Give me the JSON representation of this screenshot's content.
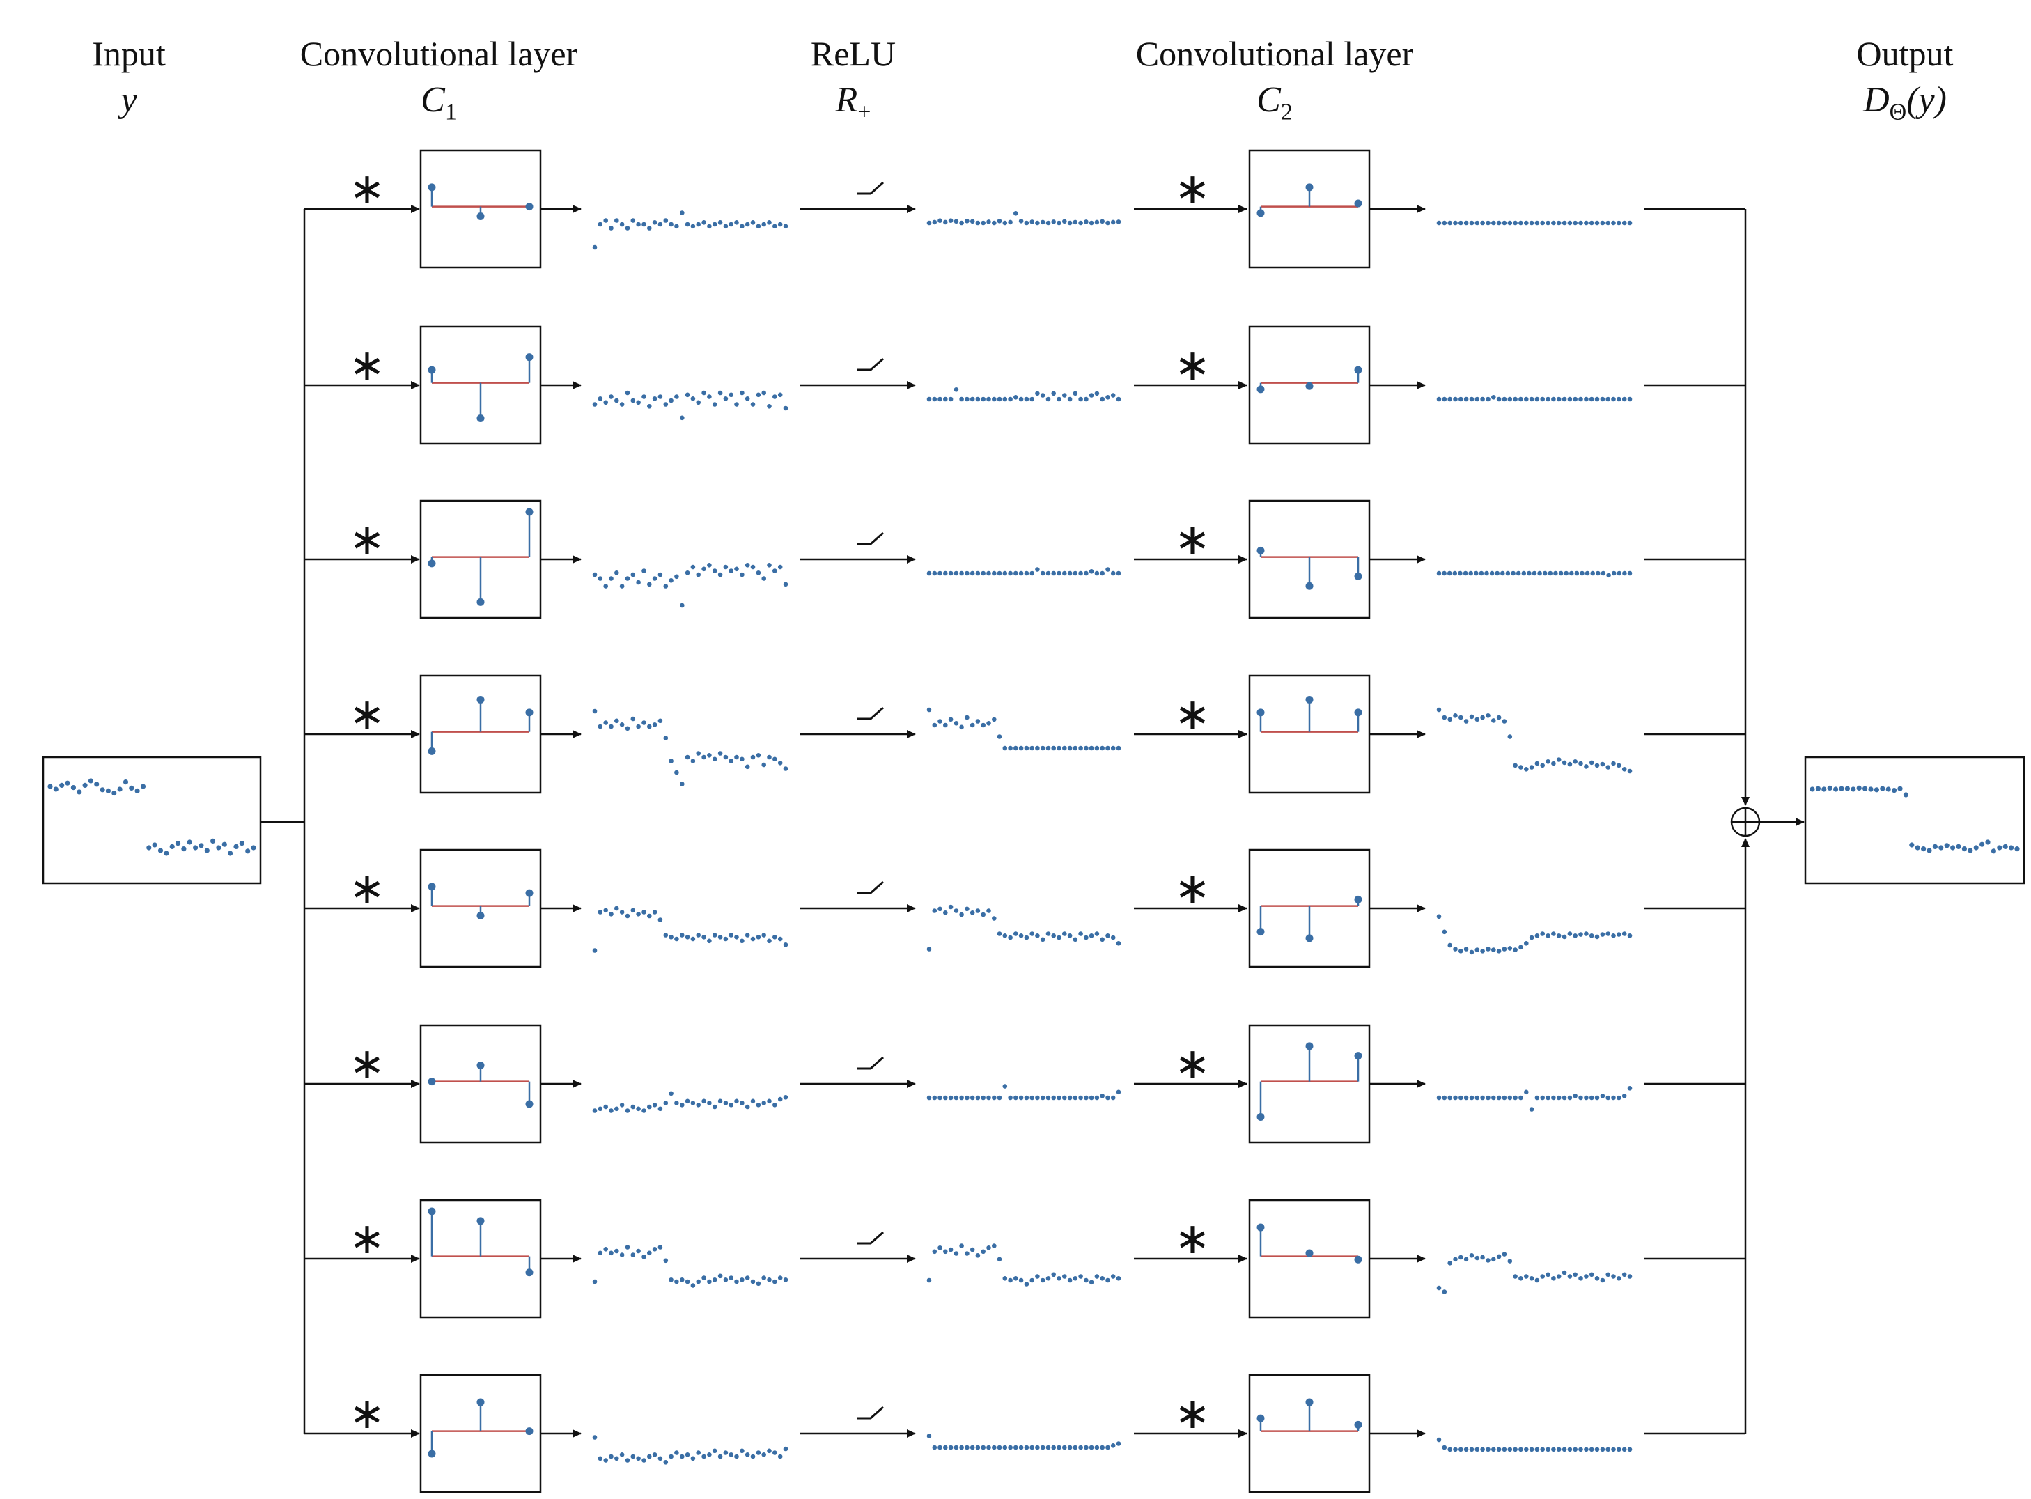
{
  "headers": {
    "input": {
      "title": "Input",
      "symbol": "y"
    },
    "conv1": {
      "title": "Convolutional layer",
      "symbol": "C",
      "subscript": "1"
    },
    "relu": {
      "title": "ReLU",
      "symbol": "R",
      "subscript": "+"
    },
    "conv2": {
      "title": "Convolutional layer",
      "symbol": "C",
      "subscript": "2"
    },
    "output": {
      "title": "Output",
      "symbol": "D",
      "subscript": "Θ",
      "arg": "(y)"
    }
  },
  "operators": {
    "convolution": "∗",
    "sum": "⊕"
  },
  "colors": {
    "points": "#3a6ea5",
    "baseline": "#c0504d",
    "line": "#111111"
  },
  "input_signal": [
    0.6,
    0.55,
    0.62,
    0.66,
    0.58,
    0.5,
    0.62,
    0.7,
    0.64,
    0.54,
    0.52,
    0.48,
    0.55,
    0.68,
    0.57,
    0.52,
    0.6,
    -0.5,
    -0.45,
    -0.55,
    -0.6,
    -0.48,
    -0.42,
    -0.52,
    -0.4,
    -0.5,
    -0.46,
    -0.55,
    -0.38,
    -0.5,
    -0.44,
    -0.6,
    -0.48,
    -0.42,
    -0.56,
    -0.5
  ],
  "output_signal": [
    0.55,
    0.56,
    0.55,
    0.57,
    0.55,
    0.56,
    0.56,
    0.55,
    0.57,
    0.56,
    0.55,
    0.54,
    0.56,
    0.55,
    0.53,
    0.56,
    0.45,
    -0.45,
    -0.5,
    -0.52,
    -0.55,
    -0.48,
    -0.5,
    -0.46,
    -0.5,
    -0.48,
    -0.52,
    -0.55,
    -0.5,
    -0.44,
    -0.4,
    -0.56,
    -0.5,
    -0.48,
    -0.5,
    -0.52
  ],
  "channels": [
    {
      "k1": [
        0.3,
        -0.15,
        0.0
      ],
      "k2": [
        -0.1,
        0.3,
        0.05
      ],
      "conv": [
        -0.6,
        0.0,
        0.1,
        -0.1,
        0.1,
        0.0,
        -0.1,
        0.1,
        0.0,
        0.0,
        -0.1,
        0.05,
        0.0,
        0.1,
        0.0,
        -0.05,
        0.3,
        0.0,
        -0.05,
        0.0,
        0.05,
        -0.05,
        0.0,
        0.05,
        -0.05,
        0.0,
        0.05,
        -0.05,
        0.0,
        0.05,
        -0.05,
        0.0,
        0.05,
        -0.05,
        0.0,
        -0.05
      ],
      "relu": [
        0.0,
        0.02,
        0.06,
        0.02,
        0.06,
        0.04,
        0.0,
        0.05,
        0.04,
        0.0,
        0.0,
        0.03,
        0.0,
        0.05,
        0.0,
        0.02,
        0.25,
        0.05,
        0.0,
        0.03,
        0.0,
        0.02,
        0.0,
        0.03,
        0.0,
        0.04,
        0.0,
        0.02,
        0.0,
        0.03,
        0.0,
        0.02,
        0.04,
        0.0,
        0.02,
        0.03
      ],
      "out": [
        0,
        0,
        0,
        0,
        0,
        0,
        0,
        0,
        0,
        0,
        0,
        0,
        0,
        0,
        0,
        0,
        0,
        0,
        0,
        0,
        0,
        0,
        0,
        0,
        0,
        0,
        0,
        0,
        0,
        0,
        0,
        0,
        0,
        0,
        0,
        0
      ]
    },
    {
      "k1": [
        0.2,
        -0.55,
        0.4
      ],
      "k2": [
        -0.1,
        -0.05,
        0.2
      ],
      "conv": [
        -0.1,
        0.05,
        -0.05,
        0.1,
        0.0,
        -0.1,
        0.2,
        0.0,
        -0.05,
        0.1,
        -0.15,
        0.05,
        0.1,
        -0.1,
        0.0,
        0.1,
        -0.45,
        0.15,
        0.05,
        -0.05,
        0.2,
        0.1,
        -0.1,
        0.2,
        0.05,
        0.15,
        -0.1,
        0.2,
        0.05,
        -0.1,
        0.15,
        0.2,
        -0.15,
        0.1,
        0.15,
        -0.2
      ],
      "relu": [
        0,
        0,
        0,
        0,
        0,
        0.25,
        0,
        0,
        0,
        0,
        0,
        0,
        0,
        0,
        0,
        0,
        0.05,
        0,
        0,
        0,
        0.15,
        0.1,
        0,
        0.15,
        0,
        0.1,
        0,
        0.15,
        0,
        0,
        0.1,
        0.15,
        0,
        0.05,
        0.1,
        0
      ],
      "out": [
        0,
        0,
        0,
        0,
        0,
        0,
        0,
        0,
        0,
        0,
        0.05,
        0,
        0,
        0,
        0,
        0,
        0,
        0,
        0,
        0,
        0,
        0,
        0,
        0,
        0,
        0,
        0,
        0,
        0,
        0,
        0,
        0,
        0,
        0,
        0,
        0
      ]
    },
    {
      "k1": [
        -0.1,
        -0.7,
        0.7
      ],
      "k2": [
        0.1,
        -0.45,
        -0.3
      ],
      "conv": [
        0.0,
        -0.1,
        -0.3,
        -0.1,
        0.05,
        -0.3,
        -0.1,
        0.0,
        -0.2,
        0.1,
        -0.25,
        -0.1,
        0.0,
        -0.3,
        -0.15,
        -0.05,
        -0.8,
        0.05,
        0.2,
        0.0,
        0.15,
        0.25,
        0.1,
        0.0,
        0.2,
        0.1,
        0.15,
        0.0,
        0.25,
        0.2,
        0.05,
        -0.1,
        0.25,
        0.1,
        0.2,
        -0.25
      ],
      "relu": [
        0,
        0,
        0,
        0,
        0,
        0,
        0,
        0,
        0,
        0,
        0,
        0,
        0,
        0,
        0,
        0,
        0,
        0,
        0,
        0,
        0.1,
        0,
        0,
        0,
        0,
        0,
        0,
        0,
        0,
        0,
        0.05,
        0,
        0,
        0.1,
        0,
        0
      ],
      "out": [
        0,
        0,
        0,
        0,
        0,
        0,
        0,
        0,
        0,
        0,
        0,
        0,
        0,
        0,
        0,
        0,
        0,
        0,
        0,
        0,
        0,
        0,
        0,
        0,
        0,
        0,
        0,
        0,
        0,
        0,
        0,
        0,
        -0.05,
        0,
        0,
        0,
        0
      ]
    },
    {
      "k1": [
        -0.3,
        0.5,
        0.3
      ],
      "k2": [
        0.3,
        0.5,
        0.3
      ],
      "conv": [
        1.0,
        0.6,
        0.7,
        0.6,
        0.75,
        0.65,
        0.55,
        0.8,
        0.6,
        0.7,
        0.6,
        0.65,
        0.75,
        0.3,
        -0.3,
        -0.6,
        -0.9,
        -0.2,
        -0.3,
        -0.1,
        -0.2,
        -0.15,
        -0.25,
        -0.1,
        -0.2,
        -0.3,
        -0.2,
        -0.25,
        -0.45,
        -0.2,
        -0.15,
        -0.4,
        -0.2,
        -0.25,
        -0.35,
        -0.5
      ],
      "relu": [
        1.0,
        0.6,
        0.7,
        0.6,
        0.75,
        0.65,
        0.55,
        0.8,
        0.6,
        0.7,
        0.6,
        0.65,
        0.75,
        0.3,
        0,
        0,
        0,
        0,
        0,
        0,
        0,
        0,
        0,
        0,
        0,
        0,
        0,
        0,
        0,
        0,
        0,
        0,
        0,
        0,
        0,
        0
      ],
      "out": [
        1.0,
        0.8,
        0.75,
        0.85,
        0.8,
        0.7,
        0.82,
        0.75,
        0.8,
        0.85,
        0.72,
        0.8,
        0.7,
        0.3,
        -0.45,
        -0.5,
        -0.55,
        -0.5,
        -0.4,
        -0.45,
        -0.35,
        -0.4,
        -0.3,
        -0.38,
        -0.42,
        -0.35,
        -0.4,
        -0.48,
        -0.38,
        -0.45,
        -0.42,
        -0.5,
        -0.4,
        -0.45,
        -0.55,
        -0.6
      ]
    },
    {
      "k1": [
        0.3,
        -0.15,
        0.2
      ],
      "k2": [
        -0.4,
        -0.5,
        0.1
      ],
      "conv": [
        -0.7,
        0.3,
        0.35,
        0.25,
        0.4,
        0.3,
        0.2,
        0.35,
        0.25,
        0.3,
        0.2,
        0.3,
        0.1,
        -0.3,
        -0.35,
        -0.4,
        -0.3,
        -0.35,
        -0.4,
        -0.3,
        -0.35,
        -0.45,
        -0.3,
        -0.35,
        -0.4,
        -0.3,
        -0.35,
        -0.45,
        -0.3,
        -0.4,
        -0.35,
        -0.3,
        -0.45,
        -0.35,
        -0.4,
        -0.55
      ],
      "relu": [
        -0.7,
        0.3,
        0.35,
        0.25,
        0.4,
        0.3,
        0.2,
        0.35,
        0.25,
        0.3,
        0.2,
        0.3,
        0.1,
        -0.3,
        -0.35,
        -0.4,
        -0.3,
        -0.35,
        -0.4,
        -0.3,
        -0.35,
        -0.45,
        -0.3,
        -0.35,
        -0.4,
        -0.3,
        -0.35,
        -0.45,
        -0.3,
        -0.4,
        -0.35,
        -0.3,
        -0.45,
        -0.35,
        -0.4,
        -0.55
      ],
      "out": [
        0.15,
        -0.25,
        -0.6,
        -0.7,
        -0.75,
        -0.7,
        -0.78,
        -0.72,
        -0.75,
        -0.7,
        -0.72,
        -0.75,
        -0.7,
        -0.68,
        -0.72,
        -0.65,
        -0.55,
        -0.4,
        -0.35,
        -0.3,
        -0.35,
        -0.3,
        -0.35,
        -0.38,
        -0.3,
        -0.35,
        -0.32,
        -0.3,
        -0.35,
        -0.38,
        -0.32,
        -0.3,
        -0.35,
        -0.32,
        -0.3,
        -0.35
      ]
    },
    {
      "k1": [
        0.0,
        0.25,
        -0.35
      ],
      "k2": [
        -0.55,
        0.55,
        0.4
      ],
      "conv": [
        -0.3,
        -0.25,
        -0.2,
        -0.3,
        -0.25,
        -0.15,
        -0.3,
        -0.2,
        -0.25,
        -0.3,
        -0.2,
        -0.15,
        -0.25,
        -0.1,
        0.15,
        -0.1,
        -0.15,
        -0.05,
        -0.1,
        -0.15,
        -0.05,
        -0.1,
        -0.2,
        -0.05,
        -0.1,
        -0.15,
        -0.05,
        -0.1,
        -0.2,
        -0.05,
        -0.15,
        -0.1,
        -0.05,
        -0.15,
        0.0,
        0.05
      ],
      "relu": [
        0,
        0,
        0,
        0,
        0,
        0,
        0,
        0,
        0,
        0,
        0,
        0,
        0,
        0,
        0.3,
        0,
        0,
        0,
        0,
        0,
        0,
        0,
        0,
        0,
        0,
        0,
        0,
        0,
        0,
        0,
        0,
        0,
        0.05,
        0,
        0,
        0.15
      ],
      "out": [
        0,
        0,
        0,
        0,
        0,
        0,
        0,
        0,
        0,
        0,
        0,
        0,
        0,
        0,
        0,
        0,
        0.15,
        -0.3,
        0,
        0,
        0,
        0,
        0,
        0,
        0,
        0.05,
        0,
        0,
        0,
        0,
        0.05,
        0,
        0,
        0,
        0.05,
        0.25
      ]
    },
    {
      "k1": [
        0.7,
        0.55,
        -0.25
      ],
      "k2": [
        0.45,
        0.05,
        -0.05
      ],
      "conv": [
        -0.2,
        0.55,
        0.65,
        0.55,
        0.6,
        0.5,
        0.7,
        0.5,
        0.6,
        0.45,
        0.55,
        0.65,
        0.7,
        0.35,
        -0.15,
        -0.2,
        -0.15,
        -0.2,
        -0.3,
        -0.2,
        -0.1,
        -0.2,
        -0.15,
        -0.05,
        -0.15,
        -0.1,
        -0.2,
        -0.15,
        -0.1,
        -0.2,
        -0.25,
        -0.1,
        -0.15,
        -0.2,
        -0.1,
        -0.15
      ],
      "relu": [
        -0.2,
        0.55,
        0.65,
        0.55,
        0.6,
        0.5,
        0.7,
        0.5,
        0.6,
        0.45,
        0.55,
        0.65,
        0.7,
        0.35,
        -0.15,
        -0.2,
        -0.15,
        -0.2,
        -0.3,
        -0.2,
        -0.1,
        -0.2,
        -0.15,
        -0.05,
        -0.15,
        -0.1,
        -0.2,
        -0.15,
        -0.1,
        -0.2,
        -0.25,
        -0.1,
        -0.15,
        -0.2,
        -0.1,
        -0.15
      ],
      "out": [
        -0.4,
        -0.5,
        0.25,
        0.35,
        0.4,
        0.35,
        0.45,
        0.38,
        0.4,
        0.32,
        0.35,
        0.42,
        0.48,
        0.3,
        -0.1,
        -0.15,
        -0.1,
        -0.15,
        -0.2,
        -0.1,
        -0.05,
        -0.15,
        -0.1,
        0.0,
        -0.1,
        -0.05,
        -0.15,
        -0.1,
        -0.05,
        -0.15,
        -0.2,
        -0.05,
        -0.1,
        -0.15,
        -0.05,
        -0.1
      ]
    },
    {
      "k1": [
        -0.35,
        0.45,
        0.0
      ],
      "k2": [
        0.2,
        0.45,
        0.1
      ],
      "conv": [
        0.3,
        -0.25,
        -0.3,
        -0.2,
        -0.25,
        -0.15,
        -0.3,
        -0.2,
        -0.25,
        -0.3,
        -0.2,
        -0.15,
        -0.25,
        -0.35,
        -0.2,
        -0.1,
        -0.2,
        -0.15,
        -0.25,
        -0.1,
        -0.2,
        -0.15,
        -0.05,
        -0.2,
        -0.1,
        -0.15,
        -0.2,
        -0.05,
        -0.15,
        -0.2,
        -0.1,
        -0.15,
        -0.05,
        -0.1,
        -0.2,
        0.0
      ],
      "relu": [
        0.3,
        0,
        0,
        0,
        0,
        0,
        0,
        0,
        0,
        0,
        0,
        0,
        0,
        0,
        0,
        0,
        0,
        0,
        0,
        0,
        0,
        0,
        0,
        0,
        0,
        0,
        0,
        0,
        0,
        0,
        0,
        0,
        0,
        0,
        0.05,
        0.1
      ],
      "out": [
        0.2,
        0.0,
        -0.05,
        -0.05,
        -0.05,
        -0.05,
        -0.05,
        -0.05,
        -0.05,
        -0.05,
        -0.05,
        -0.05,
        -0.05,
        -0.05,
        -0.05,
        -0.05,
        -0.05,
        -0.05,
        -0.05,
        -0.05,
        -0.05,
        -0.05,
        -0.05,
        -0.05,
        -0.05,
        -0.05,
        -0.05,
        -0.05,
        -0.05,
        -0.05,
        -0.05,
        -0.05,
        -0.05,
        -0.05,
        -0.05,
        -0.05
      ]
    }
  ]
}
